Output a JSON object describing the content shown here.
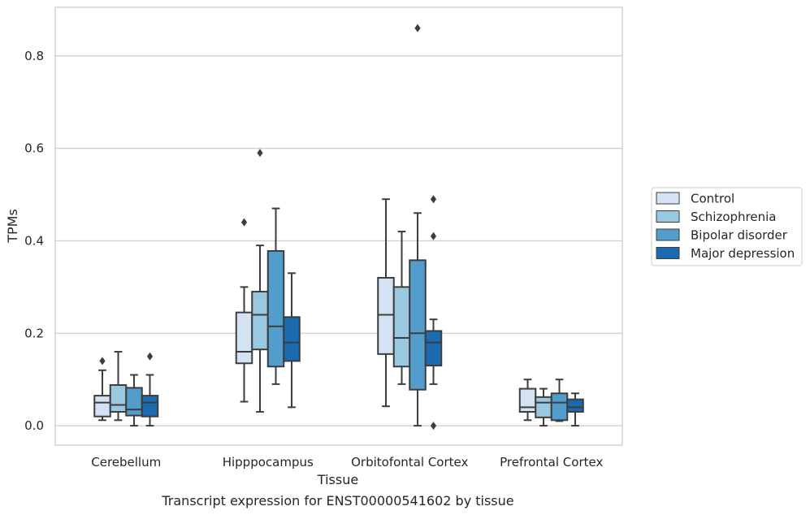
{
  "chart_data": {
    "type": "boxplot",
    "caption": "Transcript expression for ENST00000541602 by tissue",
    "xlabel": "Tissue",
    "ylabel": "TPMs",
    "ylim": [
      -0.042,
      0.905
    ],
    "yticks": [
      0.0,
      0.2,
      0.4,
      0.6,
      0.8
    ],
    "ytick_labels": [
      "0.0",
      "0.2",
      "0.4",
      "0.6",
      "0.8"
    ],
    "grid": "horizontal",
    "legend_position": "right",
    "categories": [
      "Cerebellum",
      "Hipppocampus",
      "Orbitofontal Cortex",
      "Prefrontal Cortex"
    ],
    "series": [
      {
        "name": "Control",
        "color": "#d3e3f3",
        "boxes": [
          {
            "whisker_low": 0.012,
            "q1": 0.02,
            "median": 0.05,
            "q3": 0.065,
            "whisker_high": 0.12,
            "outliers": [
              0.14
            ]
          },
          {
            "whisker_low": 0.052,
            "q1": 0.135,
            "median": 0.16,
            "q3": 0.245,
            "whisker_high": 0.3,
            "outliers": [
              0.44
            ]
          },
          {
            "whisker_low": 0.042,
            "q1": 0.155,
            "median": 0.24,
            "q3": 0.32,
            "whisker_high": 0.49,
            "outliers": []
          },
          {
            "whisker_low": 0.012,
            "q1": 0.03,
            "median": 0.04,
            "q3": 0.08,
            "whisker_high": 0.1,
            "outliers": []
          }
        ]
      },
      {
        "name": "Schizophrenia",
        "color": "#9ac8e0",
        "boxes": [
          {
            "whisker_low": 0.012,
            "q1": 0.03,
            "median": 0.045,
            "q3": 0.088,
            "whisker_high": 0.16,
            "outliers": []
          },
          {
            "whisker_low": 0.03,
            "q1": 0.165,
            "median": 0.24,
            "q3": 0.29,
            "whisker_high": 0.39,
            "outliers": [
              0.59
            ]
          },
          {
            "whisker_low": 0.09,
            "q1": 0.128,
            "median": 0.19,
            "q3": 0.3,
            "whisker_high": 0.42,
            "outliers": []
          },
          {
            "whisker_low": 0.0,
            "q1": 0.018,
            "median": 0.05,
            "q3": 0.062,
            "whisker_high": 0.08,
            "outliers": []
          }
        ]
      },
      {
        "name": "Bipolar disorder",
        "color": "#529dcc",
        "boxes": [
          {
            "whisker_low": 0.0,
            "q1": 0.022,
            "median": 0.035,
            "q3": 0.082,
            "whisker_high": 0.11,
            "outliers": []
          },
          {
            "whisker_low": 0.09,
            "q1": 0.128,
            "median": 0.215,
            "q3": 0.378,
            "whisker_high": 0.47,
            "outliers": []
          },
          {
            "whisker_low": 0.0,
            "q1": 0.078,
            "median": 0.2,
            "q3": 0.358,
            "whisker_high": 0.46,
            "outliers": [
              0.86
            ]
          },
          {
            "whisker_low": 0.01,
            "q1": 0.012,
            "median": 0.05,
            "q3": 0.07,
            "whisker_high": 0.1,
            "outliers": []
          }
        ]
      },
      {
        "name": "Major depression",
        "color": "#1c6aaf",
        "boxes": [
          {
            "whisker_low": 0.0,
            "q1": 0.02,
            "median": 0.05,
            "q3": 0.065,
            "whisker_high": 0.11,
            "outliers": [
              0.15
            ]
          },
          {
            "whisker_low": 0.04,
            "q1": 0.14,
            "median": 0.18,
            "q3": 0.235,
            "whisker_high": 0.33,
            "outliers": []
          },
          {
            "whisker_low": 0.09,
            "q1": 0.13,
            "median": 0.18,
            "q3": 0.205,
            "whisker_high": 0.23,
            "outliers": [
              0.41,
              0.49,
              0.0
            ]
          },
          {
            "whisker_low": 0.0,
            "q1": 0.03,
            "median": 0.04,
            "q3": 0.057,
            "whisker_high": 0.07,
            "outliers": []
          }
        ]
      }
    ]
  }
}
